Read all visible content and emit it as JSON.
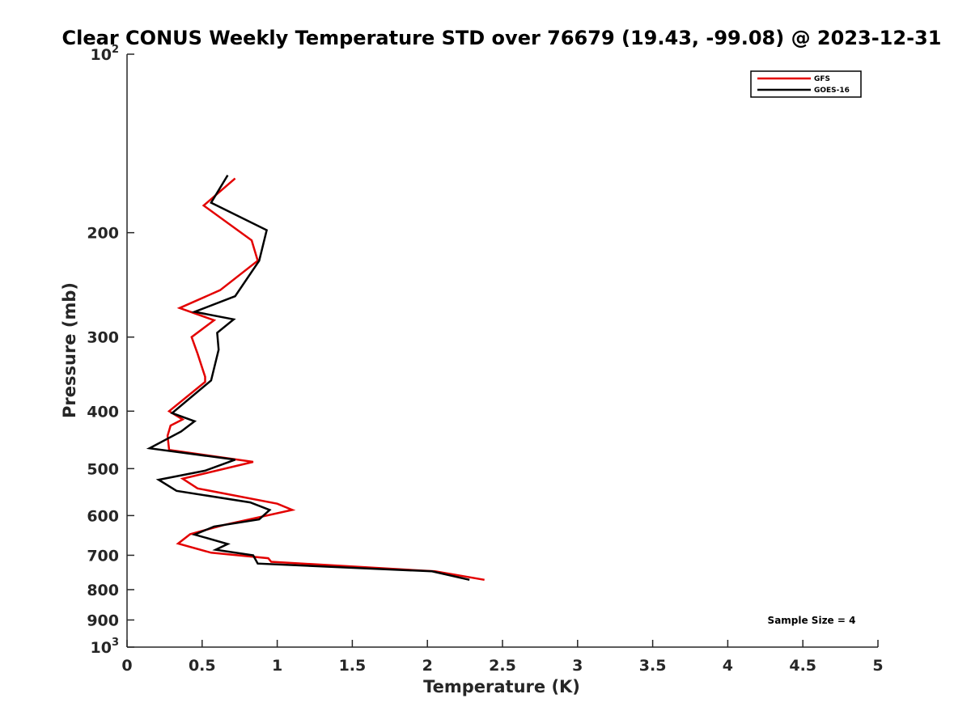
{
  "chart_data": {
    "type": "line",
    "title": "Clear CONUS Weekly Temperature STD over 76679 (19.43, -99.08) @ 2023-12-31",
    "xlabel": "Temperature (K)",
    "ylabel": "Pressure (mb)",
    "xlim": [
      0,
      5
    ],
    "ylim": [
      100,
      1000
    ],
    "y_scale": "log",
    "y_reversed": true,
    "grid": false,
    "legend_position": "top-right",
    "x_ticks": [
      0,
      0.5,
      1,
      1.5,
      2,
      2.5,
      3,
      3.5,
      4,
      4.5,
      5
    ],
    "x_tick_labels": [
      "0",
      "0.5",
      "1",
      "1.5",
      "2",
      "2.5",
      "3",
      "3.5",
      "4",
      "4.5",
      "5"
    ],
    "y_ticks": [
      100,
      200,
      300,
      400,
      500,
      600,
      700,
      800,
      900,
      1000
    ],
    "y_tick_labels": [
      {
        "base": "10",
        "exp": "2"
      },
      {
        "base": "200",
        "exp": ""
      },
      {
        "base": "300",
        "exp": ""
      },
      {
        "base": "400",
        "exp": ""
      },
      {
        "base": "500",
        "exp": ""
      },
      {
        "base": "600",
        "exp": ""
      },
      {
        "base": "700",
        "exp": ""
      },
      {
        "base": "800",
        "exp": ""
      },
      {
        "base": "900",
        "exp": ""
      },
      {
        "base": "10",
        "exp": "3"
      }
    ],
    "series": [
      {
        "name": "GFS",
        "color": "#e30000",
        "x": [
          0.72,
          0.51,
          0.83,
          0.87,
          0.62,
          0.35,
          0.58,
          0.43,
          0.47,
          0.52,
          0.52,
          0.28,
          0.37,
          0.29,
          0.27,
          0.28,
          0.84,
          0.37,
          0.47,
          1.0,
          1.1,
          0.65,
          0.42,
          0.34,
          0.56,
          0.94,
          0.96,
          2.05,
          2.38
        ],
        "y": [
          162,
          180,
          206,
          223,
          250,
          268,
          281,
          300,
          320,
          350,
          357,
          400,
          413,
          423,
          440,
          465,
          487,
          520,
          540,
          573,
          587,
          622,
          645,
          669,
          693,
          708,
          718,
          745,
          770
        ]
      },
      {
        "name": "GOES-16",
        "color": "#000000",
        "x": [
          0.67,
          0.56,
          0.93,
          0.88,
          0.72,
          0.45,
          0.71,
          0.6,
          0.61,
          0.56,
          0.3,
          0.45,
          0.36,
          0.15,
          0.72,
          0.52,
          0.21,
          0.33,
          0.82,
          0.95,
          0.88,
          0.58,
          0.45,
          0.67,
          0.59,
          0.84,
          0.87,
          2.03,
          2.28
        ],
        "y": [
          160,
          178,
          198,
          223,
          256,
          272,
          280,
          295,
          315,
          355,
          403,
          416,
          433,
          462,
          483,
          504,
          522,
          545,
          570,
          587,
          609,
          626,
          646,
          670,
          685,
          700,
          723,
          745,
          770
        ]
      }
    ],
    "annotations": [
      {
        "text": "Sample Size = 4"
      }
    ]
  }
}
